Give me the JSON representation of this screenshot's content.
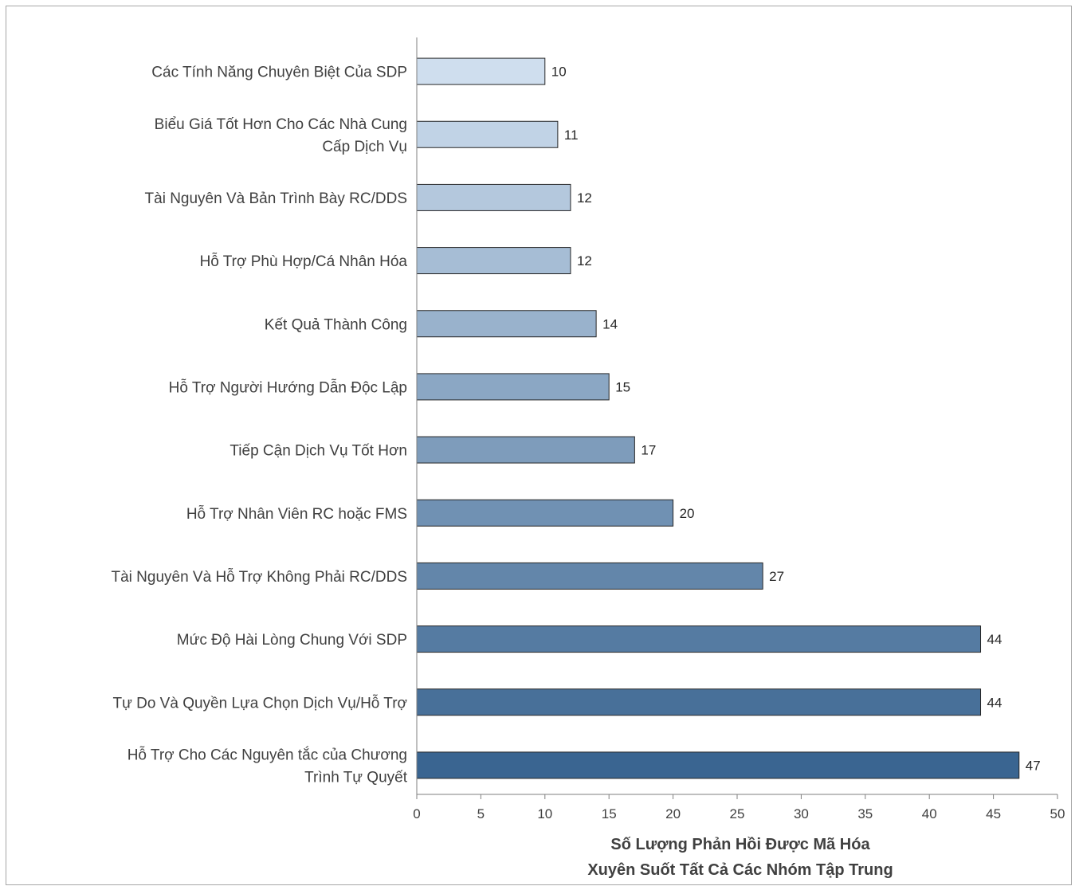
{
  "chart_data": {
    "type": "bar",
    "orientation": "horizontal",
    "categories": [
      "Các Tính Năng Chuyên Biệt Của SDP",
      "Biểu Giá Tốt Hơn Cho Các Nhà Cung Cấp Dịch Vụ",
      "Tài Nguyên Và Bản Trình Bày RC/DDS",
      "Hỗ Trợ Phù Hợp/Cá Nhân Hóa",
      "Kết Quả Thành Công",
      "Hỗ Trợ Người Hướng Dẫn Độc Lập",
      "Tiếp Cận Dịch Vụ Tốt Hơn",
      "Hỗ Trợ Nhân Viên RC hoặc FMS",
      "Tài Nguyên Và Hỗ Trợ Không Phải RC/DDS",
      "Mức Độ Hài Lòng Chung Với SDP",
      "Tự Do Và Quyền Lựa Chọn Dịch Vụ/Hỗ Trợ",
      "Hỗ Trợ Cho Các Nguyên tắc của Chương Trình Tự Quyết"
    ],
    "values": [
      10,
      11,
      12,
      12,
      14,
      15,
      17,
      20,
      27,
      44,
      44,
      47
    ],
    "xlabel": "Số Lượng Phản Hồi Được Mã Hóa Xuyên Suốt Tất Cả Các Nhóm Tập Trung",
    "xlim": [
      0,
      50
    ],
    "xticks": [
      0,
      5,
      10,
      15,
      20,
      25,
      30,
      35,
      40,
      45,
      50
    ],
    "grid": false,
    "legend": "none",
    "colors": {
      "bar_light": "#cfdeee",
      "bar_dark": "#3a6591",
      "bar_border": "#262626",
      "axis": "#7f7f7f"
    }
  }
}
